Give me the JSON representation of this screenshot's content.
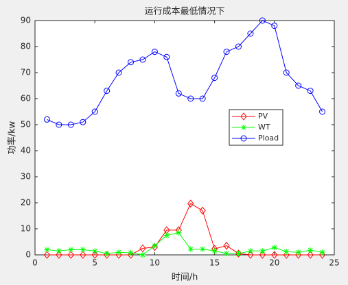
{
  "chart_data": {
    "type": "line",
    "title": "运行成本最低情况下",
    "xlabel": "时间/h",
    "ylabel": "功率/kw",
    "x": [
      1,
      2,
      3,
      4,
      5,
      6,
      7,
      8,
      9,
      10,
      11,
      12,
      13,
      14,
      15,
      16,
      17,
      18,
      19,
      20,
      21,
      22,
      23,
      24
    ],
    "series": [
      {
        "name": "PV",
        "color": "#ff0000",
        "marker": "diamond",
        "values": [
          0,
          0,
          0,
          0,
          0,
          0,
          0,
          0,
          2.5,
          3,
          9.5,
          9.5,
          19.7,
          17,
          2.3,
          3.5,
          0.5,
          0,
          0,
          0,
          0,
          0,
          0,
          0
        ]
      },
      {
        "name": "WT",
        "color": "#00ff00",
        "marker": "asterisk",
        "values": [
          2,
          1.5,
          2,
          2,
          1.5,
          0.5,
          1,
          0.8,
          0,
          3.5,
          7.5,
          8.5,
          2.2,
          2.2,
          1.5,
          0.5,
          0.5,
          1.5,
          1.5,
          2.8,
          1.2,
          1,
          1.8,
          1
        ]
      },
      {
        "name": "Pload",
        "color": "#0000ff",
        "marker": "circle",
        "values": [
          52,
          50,
          50,
          51,
          55,
          63,
          70,
          74,
          75,
          78,
          76,
          62,
          60,
          60,
          68,
          78,
          80,
          85,
          90,
          88,
          70,
          65,
          63,
          55
        ]
      }
    ],
    "xlim": [
      0,
      25
    ],
    "xticks": [
      0,
      5,
      10,
      15,
      20,
      25
    ],
    "ylim": [
      0,
      90
    ],
    "yticks": [
      0,
      10,
      20,
      30,
      40,
      50,
      60,
      70,
      80,
      90
    ],
    "grid": false,
    "legend_loc": "center right"
  }
}
